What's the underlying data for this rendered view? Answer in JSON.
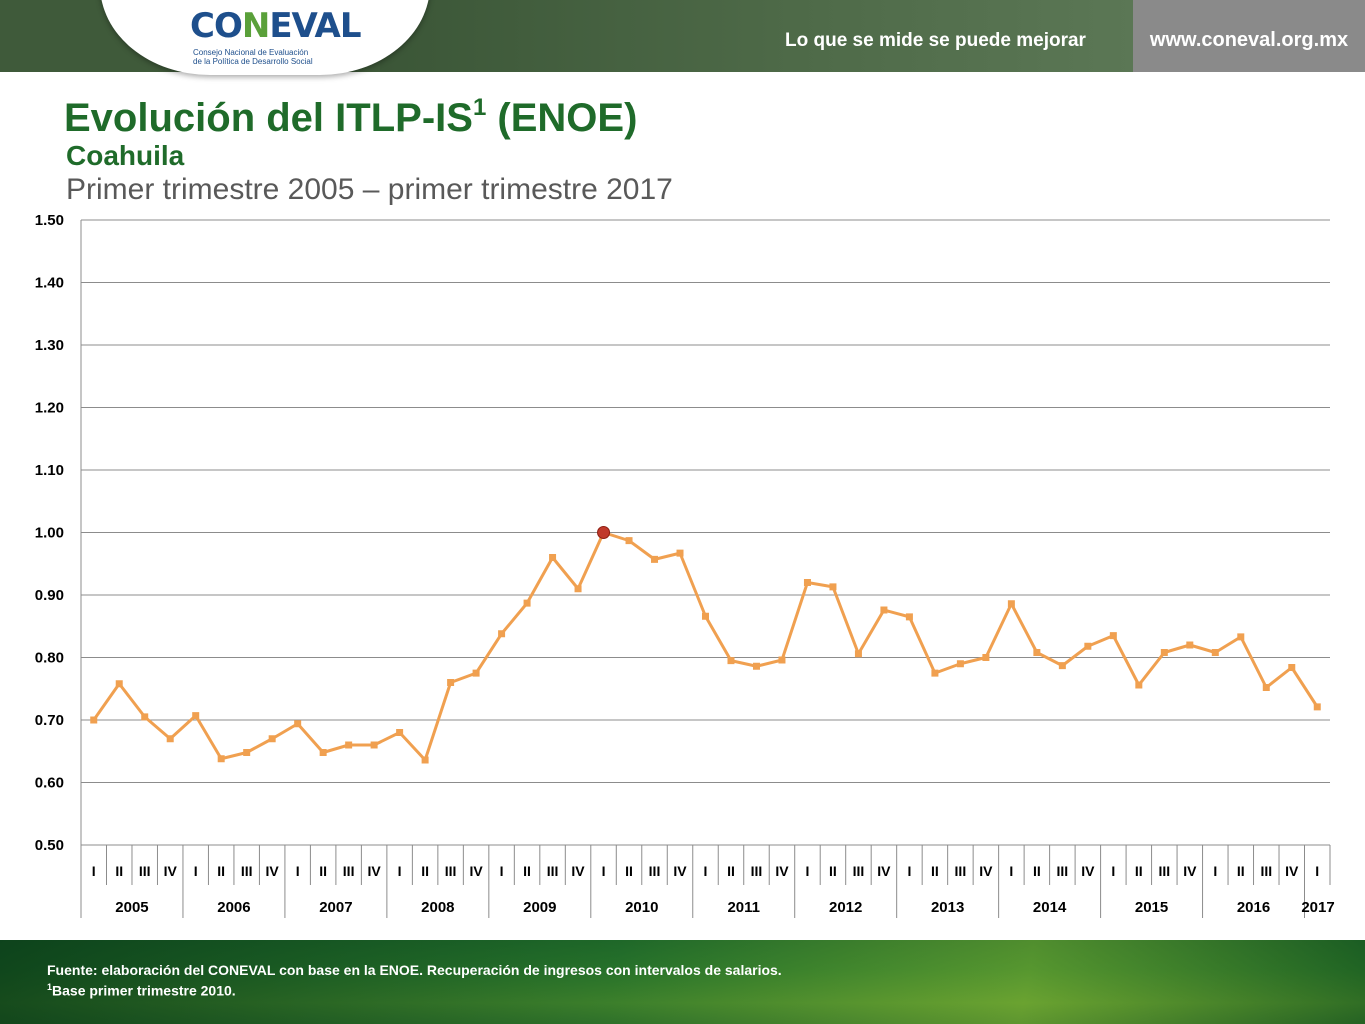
{
  "header": {
    "slogan": "Lo que se mide se puede mejorar",
    "url": "www.coneval.org.mx",
    "logo_word": "CONEVAL",
    "logo_sub_1": "Consejo Nacional de Evaluación",
    "logo_sub_2": "de la Política de Desarrollo Social"
  },
  "slide": {
    "title_main": "Evolución del ITLP-IS",
    "title_sup": "1",
    "title_tail": " (ENOE)",
    "subtitle": "Coahuila",
    "period": "Primer trimestre 2005 – primer trimestre 2017"
  },
  "footer": {
    "source": "Fuente: elaboración del CONEVAL con base en la ENOE. Recuperación de ingresos con intervalos de salarios.",
    "note_sup": "1",
    "note": "Base primer trimestre 2010."
  },
  "colors": {
    "line": "#f0a050",
    "highlight": "#c0392b",
    "title_green": "#1f6b2a"
  },
  "chart_data": {
    "type": "line",
    "ylim": [
      0.5,
      1.5
    ],
    "y_ticks": [
      "0.50",
      "0.60",
      "0.70",
      "0.80",
      "0.90",
      "1.00",
      "1.10",
      "1.20",
      "1.30",
      "1.40",
      "1.50"
    ],
    "grid": true,
    "quarters": [
      "I",
      "II",
      "III",
      "IV",
      "I",
      "II",
      "III",
      "IV",
      "I",
      "II",
      "III",
      "IV",
      "I",
      "II",
      "III",
      "IV",
      "I",
      "II",
      "III",
      "IV",
      "I",
      "II",
      "III",
      "IV",
      "I",
      "II",
      "III",
      "IV",
      "I",
      "II",
      "III",
      "IV",
      "I",
      "II",
      "III",
      "IV",
      "I",
      "II",
      "III",
      "IV",
      "I",
      "II",
      "III",
      "IV",
      "I",
      "II",
      "III",
      "IV",
      "I"
    ],
    "years": [
      "2005",
      "2006",
      "2007",
      "2008",
      "2009",
      "2010",
      "2011",
      "2012",
      "2013",
      "2014",
      "2015",
      "2016",
      "2017"
    ],
    "highlight_index": 20,
    "values": [
      0.7,
      0.758,
      0.705,
      0.67,
      0.707,
      0.638,
      0.648,
      0.67,
      0.694,
      0.648,
      0.66,
      0.66,
      0.68,
      0.636,
      0.76,
      0.775,
      0.838,
      0.887,
      0.96,
      0.91,
      1.0,
      0.987,
      0.957,
      0.967,
      0.866,
      0.795,
      0.786,
      0.796,
      0.92,
      0.913,
      0.806,
      0.876,
      0.865,
      0.775,
      0.79,
      0.8,
      0.886,
      0.808,
      0.787,
      0.818,
      0.835,
      0.756,
      0.808,
      0.82,
      0.808,
      0.833,
      0.752,
      0.784,
      0.721
    ]
  }
}
